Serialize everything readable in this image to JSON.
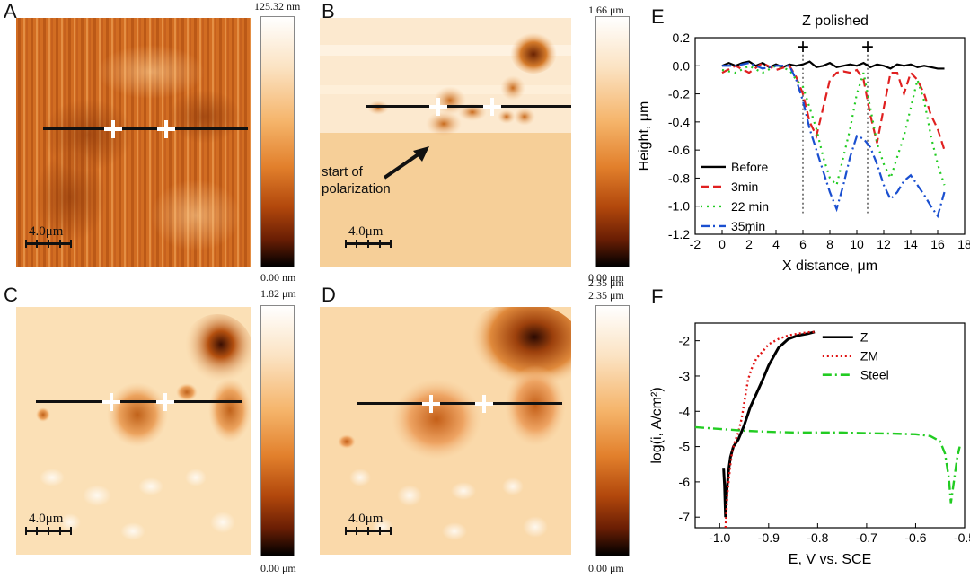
{
  "panels": {
    "A": {
      "letter": "A",
      "scale": "4.0μm",
      "cbar_top": "125.32 nm",
      "cbar_bottom": "0.00 nm"
    },
    "B": {
      "letter": "B",
      "scale": "4.0μm",
      "cbar_top": "1.66 μm",
      "cbar_bottom": "0.00 μm",
      "annotation_line1": "start of",
      "annotation_line2": "polarization"
    },
    "C": {
      "letter": "C",
      "scale": "4.0μm",
      "cbar_top": "1.82 μm",
      "cbar_bottom": "0.00 μm"
    },
    "D": {
      "letter": "D",
      "scale": "4.0μm",
      "cbar_top": "2.35 μm",
      "cbar_bottom": "0.00 μm"
    },
    "E": {
      "letter": "E"
    },
    "F": {
      "letter": "F"
    }
  },
  "chart_data": [
    {
      "type": "line",
      "panel": "E",
      "title": "Z polished",
      "xlabel": "X distance, μm",
      "ylabel": "Height, μm",
      "xlim": [
        -2,
        18
      ],
      "ylim": [
        -1.2,
        0.2
      ],
      "xticks": [
        -2,
        0,
        2,
        4,
        6,
        8,
        10,
        12,
        14,
        16,
        18
      ],
      "yticks": [
        0.2,
        0.0,
        -0.2,
        -0.4,
        -0.6,
        -0.8,
        -1.0,
        -1.2
      ],
      "markers_x": [
        6,
        10.8
      ],
      "series": [
        {
          "name": "Before",
          "color": "#000000",
          "dash": "",
          "x": [
            0,
            0.5,
            1,
            1.5,
            2,
            2.5,
            3,
            3.5,
            4,
            4.5,
            5,
            5.5,
            6,
            6.5,
            7,
            7.5,
            8,
            8.5,
            9,
            9.5,
            10,
            10.5,
            11,
            11.5,
            12,
            12.5,
            13,
            13.5,
            14,
            14.5,
            15,
            15.5,
            16,
            16.5
          ],
          "y": [
            0.0,
            0.02,
            0.0,
            0.02,
            0.03,
            0.0,
            0.02,
            -0.01,
            0.01,
            -0.01,
            0.01,
            0.0,
            0.01,
            0.03,
            -0.01,
            0.0,
            0.02,
            -0.01,
            0.0,
            0.01,
            0.0,
            0.02,
            -0.01,
            0.01,
            0.0,
            -0.02,
            0.01,
            0.0,
            0.01,
            -0.01,
            0.0,
            -0.01,
            -0.02,
            -0.02
          ]
        },
        {
          "name": "3min",
          "color": "#e02020",
          "dash": "9,5",
          "x": [
            0,
            1,
            2,
            3,
            4,
            5,
            5.5,
            6,
            6.5,
            7,
            7.5,
            8,
            8.5,
            9,
            9.5,
            10,
            10.5,
            11,
            11.5,
            12,
            12.5,
            13,
            13.5,
            14,
            14.5,
            15,
            15.5,
            16,
            16.5
          ],
          "y": [
            -0.05,
            0.0,
            -0.05,
            0.02,
            -0.03,
            0.0,
            -0.08,
            -0.2,
            -0.4,
            -0.5,
            -0.3,
            -0.1,
            -0.05,
            -0.04,
            -0.05,
            -0.03,
            -0.1,
            -0.35,
            -0.55,
            -0.3,
            -0.05,
            -0.05,
            -0.2,
            -0.05,
            -0.1,
            -0.2,
            -0.35,
            -0.45,
            -0.6
          ]
        },
        {
          "name": "22 min",
          "color": "#22cc22",
          "dash": "2,5",
          "x": [
            0,
            1,
            2,
            3,
            4,
            5,
            5.5,
            6,
            6.5,
            7,
            7.5,
            8,
            8.5,
            9,
            9.5,
            10,
            10.5,
            11,
            11.5,
            12,
            12.5,
            13,
            13.5,
            14,
            14.5,
            15,
            15.5,
            16,
            16.5
          ],
          "y": [
            -0.03,
            -0.05,
            0.0,
            -0.05,
            0.0,
            -0.03,
            -0.1,
            -0.15,
            -0.3,
            -0.45,
            -0.65,
            -0.8,
            -0.85,
            -0.65,
            -0.45,
            -0.2,
            -0.05,
            -0.3,
            -0.55,
            -0.7,
            -0.8,
            -0.65,
            -0.5,
            -0.3,
            -0.1,
            -0.25,
            -0.5,
            -0.7,
            -0.85
          ]
        },
        {
          "name": "35min",
          "color": "#1a4fd0",
          "dash": "10,4,2,4",
          "x": [
            0,
            1,
            2,
            3,
            4,
            5,
            5.5,
            6,
            6.5,
            7,
            7.5,
            8,
            8.5,
            9,
            9.5,
            10,
            10.5,
            11,
            11.5,
            12,
            12.5,
            13,
            13.5,
            14,
            14.5,
            15,
            15.5,
            16,
            16.5
          ],
          "y": [
            0.0,
            0.0,
            0.02,
            -0.02,
            0.0,
            0.0,
            -0.1,
            -0.25,
            -0.45,
            -0.6,
            -0.75,
            -0.9,
            -1.02,
            -0.85,
            -0.65,
            -0.5,
            -0.52,
            -0.58,
            -0.7,
            -0.85,
            -0.95,
            -0.9,
            -0.82,
            -0.78,
            -0.85,
            -0.92,
            -1.0,
            -1.07,
            -0.9
          ]
        }
      ]
    },
    {
      "type": "line",
      "panel": "F",
      "xlabel": "E, V vs. SCE",
      "ylabel": "log(i, A/cm²)",
      "xlim": [
        -1.05,
        -0.5
      ],
      "ylim": [
        -7.3,
        -1.5
      ],
      "xticks": [
        -1.0,
        -0.9,
        -0.8,
        -0.7,
        -0.6,
        -0.5
      ],
      "xtick_labels": [
        "-1.0",
        "-0.9",
        "-0.8",
        "-0.7",
        "-0.6",
        "-0.5"
      ],
      "yticks": [
        -2,
        -3,
        -4,
        -5,
        -6,
        -7
      ],
      "series": [
        {
          "name": "Z",
          "color": "#000000",
          "dash": "",
          "x": [
            -0.992,
            -0.99,
            -0.988,
            -0.985,
            -0.982,
            -0.978,
            -0.972,
            -0.962,
            -0.95,
            -0.938,
            -0.925,
            -0.912,
            -0.9,
            -0.88,
            -0.86,
            -0.84,
            -0.82,
            -0.806
          ],
          "y": [
            -5.6,
            -6.1,
            -7.0,
            -6.2,
            -5.7,
            -5.3,
            -5.0,
            -4.8,
            -4.4,
            -3.9,
            -3.5,
            -3.1,
            -2.7,
            -2.2,
            -1.95,
            -1.85,
            -1.8,
            -1.75
          ]
        },
        {
          "name": "ZM",
          "color": "#e01010",
          "dash": "2,3",
          "x": [
            -0.988,
            -0.986,
            -0.984,
            -0.981,
            -0.978,
            -0.975,
            -0.97,
            -0.962,
            -0.955,
            -0.948,
            -0.942,
            -0.935,
            -0.925,
            -0.912,
            -0.9,
            -0.88,
            -0.86,
            -0.84,
            -0.82,
            -0.806
          ],
          "y": [
            -7.3,
            -6.8,
            -6.3,
            -5.9,
            -5.5,
            -5.2,
            -4.9,
            -4.6,
            -4.2,
            -3.6,
            -3.1,
            -2.8,
            -2.5,
            -2.3,
            -2.1,
            -1.95,
            -1.85,
            -1.8,
            -1.76,
            -1.75
          ]
        },
        {
          "name": "Steel",
          "color": "#22cc22",
          "dash": "10,4,2,4",
          "x": [
            -1.05,
            -1.0,
            -0.95,
            -0.9,
            -0.85,
            -0.8,
            -0.75,
            -0.7,
            -0.65,
            -0.6,
            -0.57,
            -0.55,
            -0.54,
            -0.532,
            -0.528,
            -0.52,
            -0.515,
            -0.51
          ],
          "y": [
            -4.45,
            -4.5,
            -4.55,
            -4.58,
            -4.6,
            -4.6,
            -4.6,
            -4.62,
            -4.63,
            -4.65,
            -4.7,
            -4.85,
            -5.2,
            -5.9,
            -6.6,
            -5.8,
            -5.3,
            -5.0
          ]
        }
      ]
    }
  ]
}
